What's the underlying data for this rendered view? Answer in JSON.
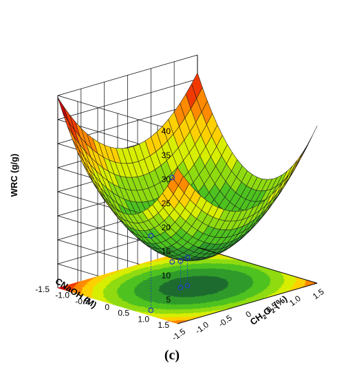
{
  "chart_data": {
    "type": "surface3d",
    "panel_label": "(c)",
    "xlabel": "CNaOH (M)",
    "ylabel": "CH2O2 (%)",
    "ylabel_parts": {
      "main": "CH",
      "sub1": "2",
      "mid": "O",
      "sub2": "2",
      "tail": " (%)"
    },
    "zlabel": "WRC (g/g)",
    "x_ticks": [
      "1.5",
      "1.0",
      "0.5",
      "0",
      "-0.5",
      "-1.0",
      "-1.5"
    ],
    "x_tick_values": [
      1.5,
      1.0,
      0.5,
      0,
      -0.5,
      -1.0,
      -1.5
    ],
    "y_ticks": [
      "-1.5",
      "-1.0",
      "-0.5",
      "0",
      "0.5",
      "1.0",
      "1.5"
    ],
    "y_tick_values": [
      -1.5,
      -1.0,
      -0.5,
      0,
      0.5,
      1.0,
      1.5
    ],
    "z_ticks": [
      "5",
      "10",
      "15",
      "20",
      "25",
      "30",
      "35",
      "40"
    ],
    "z_tick_values": [
      5,
      10,
      15,
      20,
      25,
      30,
      35,
      40
    ],
    "xlim": [
      -1.5,
      1.5
    ],
    "ylim": [
      -1.5,
      1.5
    ],
    "zlim": [
      0,
      40
    ],
    "model": {
      "b0": 6,
      "bx": -1.8,
      "by": -0.5,
      "bxx": 7.2,
      "byy": 5.8,
      "bxy": 0.4
    },
    "grid": true,
    "colormap": [
      "#0a4a32",
      "#1d6b2e",
      "#2f9b2a",
      "#4ec21f",
      "#8fdb10",
      "#d8ee00",
      "#ffd000",
      "#ff8a00",
      "#f23a00",
      "#c40000"
    ],
    "points": [
      {
        "x": 0.6,
        "y": -1.3,
        "z": 15.5
      },
      {
        "x": 0,
        "y": -0.15,
        "z": 5.5
      },
      {
        "x": 0,
        "y": 0,
        "z": 5.8
      },
      {
        "x": -1.2,
        "y": 0.7,
        "z": 17.5
      }
    ],
    "point_color": "#1f3fbf"
  }
}
